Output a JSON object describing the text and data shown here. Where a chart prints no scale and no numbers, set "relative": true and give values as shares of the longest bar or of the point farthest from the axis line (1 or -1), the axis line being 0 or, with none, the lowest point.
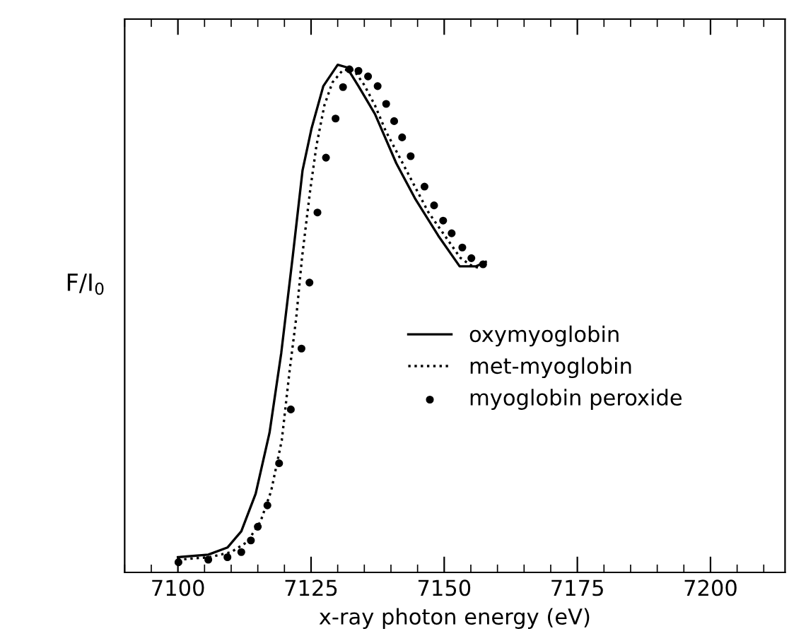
{
  "chart_data": {
    "type": "line",
    "xlabel": "x-ray photon energy (eV)",
    "ylabel": "F/I$_{0}$",
    "relative": true,
    "xlim": [
      7090,
      7214
    ],
    "xticks": [
      7100,
      7125,
      7150,
      7175,
      7200
    ],
    "grid": false,
    "legend": "right",
    "series": [
      {
        "name": "oxymyoglobin",
        "line_style": "solid",
        "color": "#000000",
        "x": [
          7100,
          7105.7,
          7109.3,
          7111.9,
          7114.6,
          7117.2,
          7119.4,
          7121.6,
          7123.4,
          7125.1,
          7127.3,
          7130.0,
          7131.7,
          7133.9,
          7137.0,
          7141.0,
          7144.5,
          7148.9,
          7152.9,
          7156.0,
          7157.8
        ],
        "values": [
          0.03,
          0.035,
          0.049,
          0.081,
          0.155,
          0.275,
          0.432,
          0.626,
          0.792,
          0.875,
          0.958,
          1,
          0.995,
          0.958,
          0.903,
          0.806,
          0.737,
          0.663,
          0.603,
          0.603,
          0.612
        ]
      },
      {
        "name": "met-myoglobin",
        "line_style": "dotted",
        "color": "#000000",
        "x": [
          7100,
          7106,
          7110,
          7113,
          7115.5,
          7117.5,
          7119.5,
          7121,
          7122.2,
          7123.3,
          7124.8,
          7126,
          7127.5,
          7129,
          7131,
          7133,
          7135,
          7137,
          7139,
          7141,
          7143,
          7145,
          7147,
          7149,
          7151,
          7153,
          7155,
          7157
        ],
        "values": [
          0.025,
          0.03,
          0.04,
          0.06,
          0.1,
          0.16,
          0.26,
          0.4,
          0.5,
          0.62,
          0.75,
          0.84,
          0.92,
          0.965,
          0.99,
          0.99,
          0.96,
          0.92,
          0.87,
          0.83,
          0.79,
          0.75,
          0.71,
          0.68,
          0.65,
          0.62,
          0.605,
          0.598
        ]
      },
      {
        "name": "myoglobin peroxide",
        "type": "scatter",
        "marker": "circle",
        "color": "#000000",
        "x": [
          7100.1,
          7105.7,
          7109.3,
          7111.9,
          7113.7,
          7115.0,
          7116.8,
          7119.0,
          7121.2,
          7123.2,
          7124.7,
          7126.2,
          7127.8,
          7129.6,
          7131.0,
          7132.2,
          7133.9,
          7135.7,
          7137.5,
          7139.1,
          7140.6,
          7142.1,
          7143.7,
          7146.3,
          7148.1,
          7149.8,
          7151.4,
          7153.4,
          7155.1,
          7157.3
        ],
        "values": [
          0.02,
          0.025,
          0.03,
          0.04,
          0.063,
          0.09,
          0.132,
          0.215,
          0.321,
          0.441,
          0.571,
          0.709,
          0.817,
          0.894,
          0.956,
          0.991,
          0.988,
          0.977,
          0.958,
          0.923,
          0.889,
          0.857,
          0.82,
          0.76,
          0.723,
          0.693,
          0.668,
          0.64,
          0.619,
          0.607
        ]
      }
    ]
  }
}
